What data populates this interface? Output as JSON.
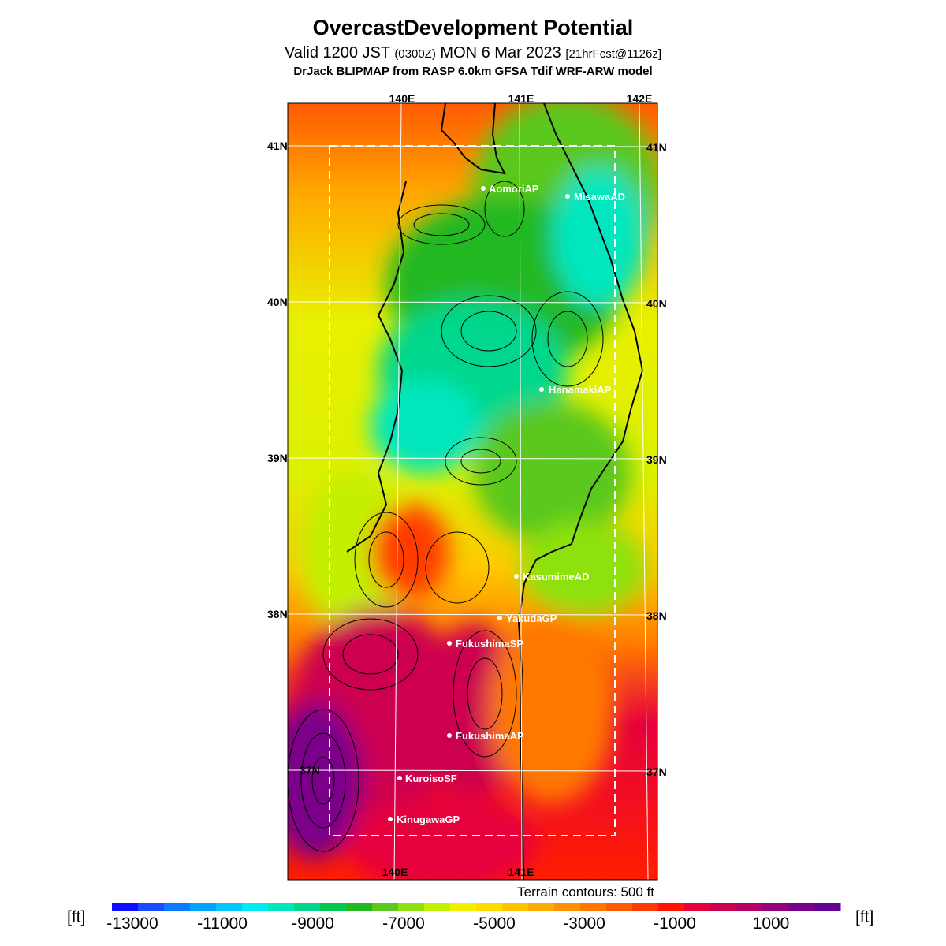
{
  "header": {
    "title": "OvercastDevelopment Potential",
    "valid_prefix": "Valid 1200 JST",
    "valid_utc": "(0300Z)",
    "valid_date": "MON 6 Mar 2023",
    "forecast_tag": "[21hrFcst@1126z]",
    "model_line": "DrJack BLIPMAP from RASP 6.0km GFSA Tdif WRF-ARW model"
  },
  "map": {
    "lon_labels_top": [
      "140E",
      "141E",
      "142E"
    ],
    "lon_labels_bottom": [
      "140E",
      "141E"
    ],
    "lat_labels_left": [
      "41N",
      "40N",
      "39N",
      "38N",
      "37N"
    ],
    "lat_labels_right": [
      "41N",
      "40N",
      "39N",
      "38N",
      "37N"
    ],
    "stations": [
      "AomoriAP",
      "MisawaAD",
      "HanamakiAP",
      "KasumimeAD",
      "YakudaGP",
      "FukushimaSP",
      "FukushimaAP",
      "KuroisoSF",
      "KinugawaGP"
    ],
    "terrain_note": "Terrain contours: 500 ft"
  },
  "colorbar": {
    "unit_left": "[ft]",
    "unit_right": "[ft]",
    "tick_labels": [
      "-13000",
      "-11000",
      "-9000",
      "-7000",
      "-5000",
      "-3000",
      "-1000",
      "1000"
    ],
    "colors": [
      "#1010ff",
      "#1a4cff",
      "#0a7aff",
      "#00a2ff",
      "#00c8ff",
      "#00ecf4",
      "#00e6be",
      "#00d78c",
      "#00c850",
      "#22b822",
      "#5ac81e",
      "#8ee10f",
      "#c3f000",
      "#f0f000",
      "#ffdc00",
      "#ffc300",
      "#ffaa00",
      "#ff9100",
      "#ff7800",
      "#ff5a00",
      "#ff3c00",
      "#ff1400",
      "#e6003c",
      "#cc0050",
      "#b40064",
      "#96007a",
      "#7a008a",
      "#620096"
    ]
  }
}
